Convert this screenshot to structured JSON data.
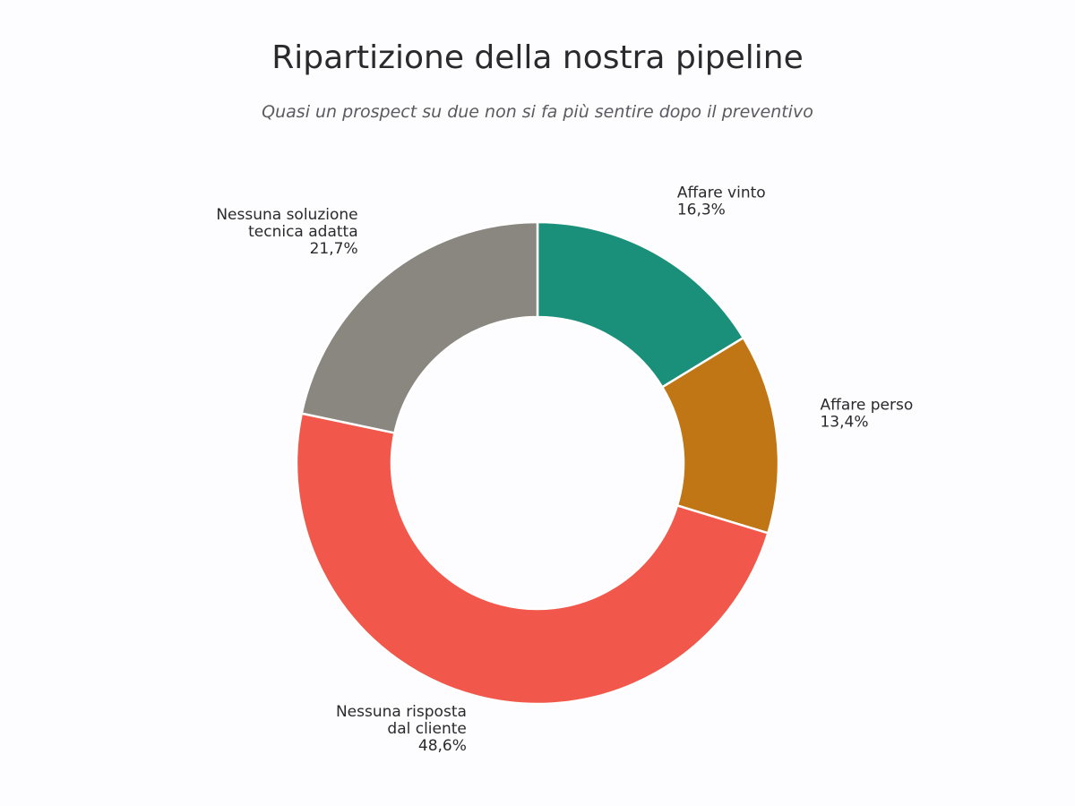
{
  "chart_data": {
    "type": "pie",
    "donut": true,
    "title": "Ripartizione della nostra pipeline",
    "subtitle": "Quasi un prospect su due non si fa più sentire dopo il preventivo",
    "slices": [
      {
        "label_lines": [
          "Affare vinto"
        ],
        "value_label": "16,3%",
        "value": 16.3,
        "color": "#1a907a",
        "label_anchor": "start"
      },
      {
        "label_lines": [
          "Affare perso"
        ],
        "value_label": "13,4%",
        "value": 13.4,
        "color": "#c17616",
        "label_anchor": "start"
      },
      {
        "label_lines": [
          "Nessuna risposta",
          "dal cliente"
        ],
        "value_label": "48,6%",
        "value": 48.6,
        "color": "#f1584b",
        "label_anchor": "end"
      },
      {
        "label_lines": [
          "Nessuna soluzione",
          "tecnica adatta"
        ],
        "value_label": "21,7%",
        "value": 21.7,
        "color": "#8a8680",
        "label_anchor": "end"
      }
    ],
    "start_angle": "top",
    "direction": "clockwise",
    "legend": "none"
  }
}
